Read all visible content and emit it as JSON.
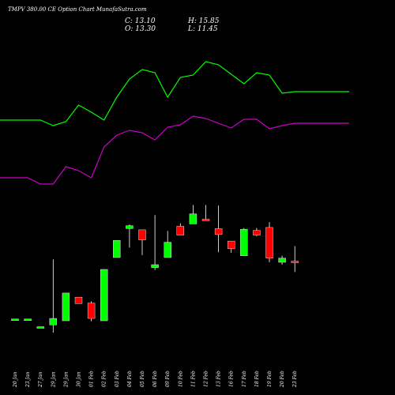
{
  "chart_data": {
    "type": "candlestick",
    "title": "TMPV 380.00 CE Option  Chart MunafaSutra.com",
    "summary": {
      "C": "C: 13.10",
      "H": "H: 15.85",
      "O": "O: 13.30",
      "L": "L: 11.45"
    },
    "categories": [
      "20 Jan",
      "23 Jan",
      "27 Jan",
      "29 Jan",
      "29 Jan",
      "30 Jan",
      "01 Feb",
      "02 Feb",
      "03 Feb",
      "04 Feb",
      "05 Feb",
      "06 Feb",
      "09 Feb",
      "10 Feb",
      "11 Feb",
      "12 Feb",
      "13 Feb",
      "16 Feb",
      "17 Feb",
      "18 Feb",
      "19 Feb",
      "20 Feb",
      "23 Feb"
    ],
    "candles": [
      {
        "o": 3.5,
        "h": 3.5,
        "l": 3.5,
        "c": 3.5
      },
      {
        "o": 3.5,
        "h": 3.5,
        "l": 3.5,
        "c": 3.5
      },
      {
        "o": 2.2,
        "h": 2.2,
        "l": 2.2,
        "c": 2.2
      },
      {
        "o": 2.5,
        "h": 13.6,
        "l": 1.2,
        "c": 3.6
      },
      {
        "o": 3.2,
        "h": 7.9,
        "l": 3.2,
        "c": 7.9
      },
      {
        "o": 7.2,
        "h": 7.2,
        "l": 6.1,
        "c": 6.1
      },
      {
        "o": 6.2,
        "h": 6.5,
        "l": 3.1,
        "c": 3.6
      },
      {
        "o": 3.2,
        "h": 11.9,
        "l": 3.2,
        "c": 11.9
      },
      {
        "o": 13.9,
        "h": 16.8,
        "l": 13.9,
        "c": 16.8
      },
      {
        "o": 18.8,
        "h": 19.5,
        "l": 15.6,
        "c": 19.3
      },
      {
        "o": 18.6,
        "h": 18.6,
        "l": 14.3,
        "c": 16.9
      },
      {
        "o": 12.2,
        "h": 21.1,
        "l": 11.8,
        "c": 12.7
      },
      {
        "o": 13.9,
        "h": 18.4,
        "l": 13.9,
        "c": 16.5
      },
      {
        "o": 19.2,
        "h": 19.7,
        "l": 17.7,
        "c": 17.7
      },
      {
        "o": 19.6,
        "h": 22.8,
        "l": 19.6,
        "c": 21.3
      },
      {
        "o": 20.4,
        "h": 22.8,
        "l": 20.2,
        "c": 20.2
      },
      {
        "o": 18.8,
        "h": 22.7,
        "l": 14.8,
        "c": 17.8
      },
      {
        "o": 16.7,
        "h": 16.7,
        "l": 14.7,
        "c": 15.4
      },
      {
        "o": 14.2,
        "h": 18.9,
        "l": 14.2,
        "c": 18.7
      },
      {
        "o": 18.5,
        "h": 18.9,
        "l": 17.5,
        "c": 17.7
      },
      {
        "o": 19.0,
        "h": 19.9,
        "l": 13.1,
        "c": 13.8
      },
      {
        "o": 13.1,
        "h": 14.2,
        "l": 12.7,
        "c": 13.8
      },
      {
        "o": 13.3,
        "h": 15.85,
        "l": 11.45,
        "c": 13.1
      }
    ],
    "upper_band": [
      152,
      152,
      152,
      159,
      154,
      133,
      142,
      152,
      123,
      100,
      88,
      92,
      123,
      98,
      95,
      78,
      82,
      94,
      106,
      92,
      95,
      118,
      116
    ],
    "lower_band": [
      225,
      225,
      233,
      233,
      211,
      216,
      225,
      186,
      171,
      165,
      168,
      177,
      161,
      158,
      147,
      150,
      156,
      162,
      151,
      151,
      163,
      159,
      156
    ],
    "colors": {
      "up": "#00ff00",
      "down": "#ff0000",
      "flat_up": "#00ff00",
      "flat_down": "#ff0000",
      "upper_band": "#00ff00",
      "lower_band": "#cc00cc",
      "wick": "#ffffff"
    }
  }
}
